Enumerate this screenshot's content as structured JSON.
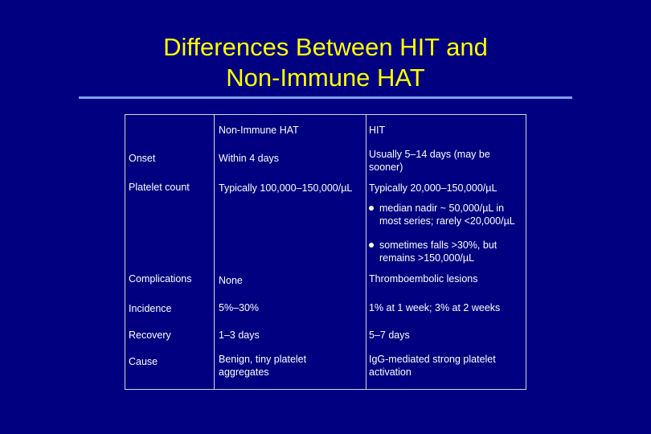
{
  "title": {
    "line1": "Differences Between HIT and",
    "line2": "Non-Immune HAT"
  },
  "table": {
    "header": {
      "col1": "",
      "col2": "Non-Immune HAT",
      "col3": "HIT"
    },
    "rows": [
      {
        "label": "Onset",
        "nonimmune": "Within 4 days",
        "hit": "Usually 5–14 days (may be sooner)"
      },
      {
        "label": "Platelet count",
        "nonimmune": "Typically 100,000–150,000/µL",
        "hit": "Typically 20,000–150,000/µL",
        "hit_bullets": [
          "median nadir ~ 50,000/µL in most series; rarely <20,000/µL",
          "sometimes falls >30%, but remains >150,000/µL"
        ]
      },
      {
        "label": "Complications",
        "nonimmune": "None",
        "hit": "Thromboembolic lesions"
      },
      {
        "label": "Incidence",
        "nonimmune": "5%–30%",
        "hit": "1% at 1 week; 3% at 2 weeks"
      },
      {
        "label": "Recovery",
        "nonimmune": "1–3 days",
        "hit": "5–7 days"
      },
      {
        "label": "Cause",
        "nonimmune": "Benign, tiny platelet aggregates",
        "hit": "IgG-mediated strong platelet activation"
      }
    ]
  }
}
